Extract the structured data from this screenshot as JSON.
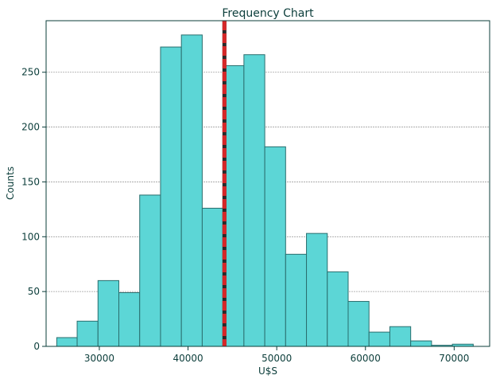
{
  "chart_data": {
    "type": "bar",
    "title": "Frequency Chart",
    "xlabel": "U$S",
    "ylabel": "Counts",
    "xlim": [
      24000,
      74000
    ],
    "ylim": [
      0,
      297
    ],
    "x_ticks": [
      30000,
      40000,
      50000,
      60000,
      70000
    ],
    "x_tick_labels": [
      "30000",
      "40000",
      "50000",
      "60000",
      "70000"
    ],
    "y_ticks": [
      0,
      50,
      100,
      150,
      200,
      250
    ],
    "y_tick_labels": [
      "0",
      "50",
      "100",
      "150",
      "200",
      "250"
    ],
    "grid": "horizontal",
    "bins": [
      {
        "x0": 25200,
        "x1": 27500,
        "count": 8
      },
      {
        "x0": 27500,
        "x1": 29850,
        "count": 23
      },
      {
        "x0": 29850,
        "x1": 32200,
        "count": 60
      },
      {
        "x0": 32200,
        "x1": 34550,
        "count": 49
      },
      {
        "x0": 34550,
        "x1": 36900,
        "count": 138
      },
      {
        "x0": 36900,
        "x1": 39250,
        "count": 273
      },
      {
        "x0": 39250,
        "x1": 41600,
        "count": 284
      },
      {
        "x0": 41600,
        "x1": 43950,
        "count": 126
      },
      {
        "x0": 43950,
        "x1": 46300,
        "count": 256
      },
      {
        "x0": 46300,
        "x1": 48650,
        "count": 266
      },
      {
        "x0": 48650,
        "x1": 51000,
        "count": 182
      },
      {
        "x0": 51000,
        "x1": 53350,
        "count": 84
      },
      {
        "x0": 53350,
        "x1": 55700,
        "count": 103
      },
      {
        "x0": 55700,
        "x1": 58050,
        "count": 68
      },
      {
        "x0": 58050,
        "x1": 60400,
        "count": 41
      },
      {
        "x0": 60400,
        "x1": 62750,
        "count": 13
      },
      {
        "x0": 62750,
        "x1": 65100,
        "count": 18
      },
      {
        "x0": 65100,
        "x1": 67450,
        "count": 5
      },
      {
        "x0": 67450,
        "x1": 69800,
        "count": 1
      },
      {
        "x0": 69800,
        "x1": 72150,
        "count": 2
      }
    ],
    "mean_line": 44100,
    "colors": {
      "bar_fill": "#5cd6d6",
      "bar_edge": "#2a6e6e",
      "mean_line_main": "#d62728",
      "mean_line_dash": "#2a2a2a",
      "grid": "#a0a0a0",
      "axis": "#0b3d3a"
    }
  }
}
